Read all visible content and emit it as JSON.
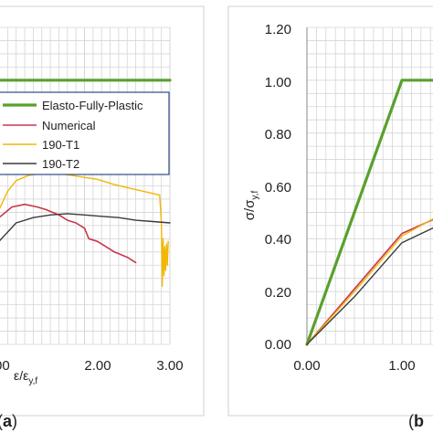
{
  "panel_labels": {
    "a_prefix": "(",
    "a_letter": "a",
    "a_suffix": ")",
    "b_prefix": "(",
    "b_letter": "b"
  },
  "chart_data": [
    {
      "type": "line",
      "panel": "a",
      "xlabel": "ε/εy,f",
      "ylabel": "",
      "xlim": [
        1.0,
        3.0
      ],
      "ylim": [
        0.0,
        1.2
      ],
      "xticks": [
        "00",
        "2.00",
        "3.00"
      ],
      "grid": true,
      "legend_position": "center-right",
      "series": [
        {
          "name": "Elasto-Fully-Plastic",
          "color": "#59a02c",
          "width": 3.2,
          "x": [
            1.0,
            3.0
          ],
          "y": [
            1.0,
            1.0
          ]
        },
        {
          "name": "Numerical",
          "color": "#c8374a",
          "width": 1.6,
          "x": [
            1.0,
            1.15,
            1.3,
            1.45,
            1.55,
            1.7,
            1.8,
            1.9,
            2.0,
            2.05,
            2.15,
            2.2,
            2.35,
            2.5,
            2.6
          ],
          "y": [
            0.48,
            0.52,
            0.53,
            0.52,
            0.51,
            0.49,
            0.47,
            0.46,
            0.44,
            0.4,
            0.39,
            0.38,
            0.35,
            0.33,
            0.31
          ]
        },
        {
          "name": "190-T1",
          "color": "#f2b705",
          "width": 1.4,
          "x": [
            1.0,
            1.1,
            1.2,
            1.35,
            1.55,
            1.75,
            1.95,
            2.15,
            2.35,
            2.55,
            2.75,
            2.88,
            2.9,
            2.91,
            2.92,
            2.93,
            2.94,
            2.95,
            2.96,
            2.97,
            2.98
          ],
          "y": [
            0.51,
            0.58,
            0.62,
            0.64,
            0.65,
            0.645,
            0.635,
            0.625,
            0.605,
            0.59,
            0.575,
            0.565,
            0.46,
            0.22,
            0.4,
            0.26,
            0.37,
            0.28,
            0.38,
            0.3,
            0.39
          ]
        },
        {
          "name": "190-T2",
          "color": "#3a3a3a",
          "width": 1.4,
          "x": [
            1.0,
            1.2,
            1.4,
            1.6,
            1.8,
            2.0,
            2.2,
            2.4,
            2.6,
            2.8,
            3.0
          ],
          "y": [
            0.39,
            0.46,
            0.48,
            0.49,
            0.495,
            0.49,
            0.485,
            0.48,
            0.47,
            0.465,
            0.46
          ]
        }
      ]
    },
    {
      "type": "line",
      "panel": "b",
      "xlabel": "",
      "ylabel": "σ/σy,f",
      "xlim": [
        0.0,
        1.5
      ],
      "ylim": [
        0.0,
        1.2
      ],
      "xticks": [
        "0.00",
        "1.00"
      ],
      "yticks": [
        "0.00",
        "0.20",
        "0.40",
        "0.60",
        "0.80",
        "1.00",
        "1.20"
      ],
      "grid": true,
      "series": [
        {
          "color": "#59a02c",
          "width": 3.2,
          "x": [
            0.0,
            1.0,
            1.5
          ],
          "y": [
            0.0,
            1.0,
            1.0
          ]
        },
        {
          "color": "#c8374a",
          "width": 1.6,
          "x": [
            0.0,
            0.5,
            1.0,
            1.5
          ],
          "y": [
            0.0,
            0.21,
            0.42,
            0.5
          ]
        },
        {
          "color": "#f2b705",
          "width": 1.4,
          "x": [
            0.0,
            0.5,
            1.0,
            1.5
          ],
          "y": [
            0.0,
            0.2,
            0.41,
            0.51
          ]
        },
        {
          "color": "#3a3a3a",
          "width": 1.4,
          "x": [
            0.0,
            0.5,
            1.0,
            1.5
          ],
          "y": [
            0.0,
            0.18,
            0.385,
            0.47
          ]
        }
      ]
    }
  ]
}
